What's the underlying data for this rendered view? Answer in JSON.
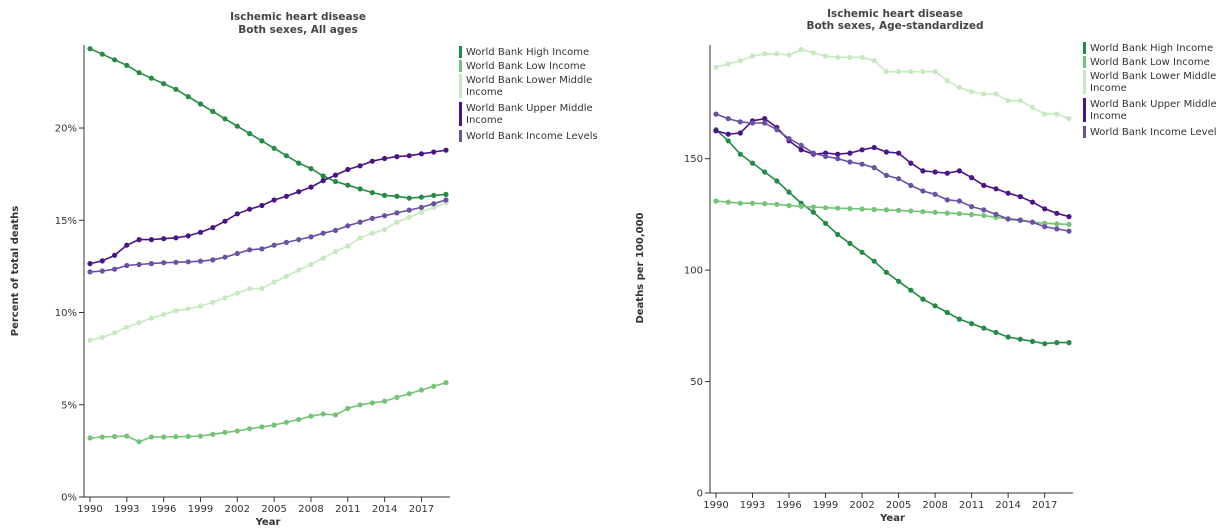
{
  "colors": {
    "high": "#238b45",
    "low": "#74c476",
    "lower_middle": "#c7e9c0",
    "upper_middle": "#4a1486",
    "income_levels": "#6a51a3",
    "axis": "#333333"
  },
  "legend": [
    {
      "key": "high",
      "lines": [
        "World Bank High Income"
      ]
    },
    {
      "key": "low",
      "lines": [
        "World Bank Low Income"
      ]
    },
    {
      "key": "lower_middle",
      "lines": [
        "World Bank Lower Middle",
        "Income"
      ]
    },
    {
      "key": "upper_middle",
      "lines": [
        "World Bank Upper Middle",
        "Income"
      ]
    },
    {
      "key": "income_levels",
      "lines": [
        "World Bank Income Levels"
      ]
    }
  ],
  "chart_data": [
    {
      "type": "line",
      "title": [
        "Ischemic heart disease",
        "Both sexes, All ages"
      ],
      "xlabel": "Year",
      "ylabel": "Percent of total deaths",
      "ylim": [
        0,
        24.5
      ],
      "y_ticks": [
        0,
        5,
        10,
        15,
        20
      ],
      "y_tick_labels": [
        "0%",
        "5%",
        "10%",
        "15%",
        "20%"
      ],
      "x_ticks": [
        1990,
        1993,
        1996,
        1999,
        2002,
        2005,
        2008,
        2011,
        2014,
        2017
      ],
      "x": [
        1990,
        1991,
        1992,
        1993,
        1994,
        1995,
        1996,
        1997,
        1998,
        1999,
        2000,
        2001,
        2002,
        2003,
        2004,
        2005,
        2006,
        2007,
        2008,
        2009,
        2010,
        2011,
        2012,
        2013,
        2014,
        2015,
        2016,
        2017,
        2018,
        2019
      ],
      "legend_position": "right",
      "series": [
        {
          "key": "high",
          "name": "World Bank High Income",
          "values": [
            24.3,
            24.0,
            23.7,
            23.4,
            23.0,
            22.7,
            22.4,
            22.1,
            21.7,
            21.3,
            20.9,
            20.5,
            20.1,
            19.7,
            19.3,
            18.9,
            18.5,
            18.1,
            17.8,
            17.4,
            17.1,
            16.9,
            16.7,
            16.5,
            16.35,
            16.3,
            16.2,
            16.25,
            16.35,
            16.4
          ]
        },
        {
          "key": "low",
          "name": "World Bank Low Income",
          "values": [
            3.2,
            3.25,
            3.28,
            3.3,
            3.0,
            3.25,
            3.25,
            3.27,
            3.28,
            3.3,
            3.4,
            3.5,
            3.58,
            3.7,
            3.8,
            3.9,
            4.05,
            4.2,
            4.38,
            4.5,
            4.45,
            4.8,
            5.0,
            5.1,
            5.2,
            5.4,
            5.6,
            5.8,
            6.0,
            6.2
          ]
        },
        {
          "key": "lower_middle",
          "name": "World Bank Lower Middle Income",
          "values": [
            8.5,
            8.65,
            8.9,
            9.2,
            9.45,
            9.7,
            9.9,
            10.1,
            10.2,
            10.35,
            10.55,
            10.8,
            11.05,
            11.3,
            11.3,
            11.65,
            11.95,
            12.3,
            12.6,
            12.95,
            13.3,
            13.6,
            14.05,
            14.3,
            14.5,
            14.9,
            15.15,
            15.45,
            15.7,
            15.95
          ]
        },
        {
          "key": "upper_middle",
          "name": "World Bank Upper Middle Income",
          "values": [
            12.65,
            12.8,
            13.1,
            13.65,
            13.95,
            13.95,
            14.0,
            14.05,
            14.15,
            14.35,
            14.6,
            14.95,
            15.35,
            15.6,
            15.8,
            16.1,
            16.3,
            16.55,
            16.8,
            17.15,
            17.45,
            17.75,
            17.95,
            18.2,
            18.35,
            18.45,
            18.5,
            18.6,
            18.7,
            18.8
          ]
        },
        {
          "key": "income_levels",
          "name": "World Bank Income Levels",
          "values": [
            12.2,
            12.25,
            12.35,
            12.55,
            12.6,
            12.65,
            12.7,
            12.72,
            12.75,
            12.78,
            12.85,
            13.0,
            13.2,
            13.4,
            13.45,
            13.65,
            13.8,
            13.95,
            14.1,
            14.3,
            14.45,
            14.7,
            14.9,
            15.1,
            15.25,
            15.4,
            15.55,
            15.7,
            15.9,
            16.1
          ]
        }
      ]
    },
    {
      "type": "line",
      "title": [
        "Ischemic heart disease",
        "Both sexes, Age-standardized"
      ],
      "xlabel": "Year",
      "ylabel": "Deaths per 100,000",
      "ylim": [
        0,
        201
      ],
      "y_ticks": [
        0,
        50,
        100,
        150
      ],
      "y_tick_labels": [
        "0",
        "50",
        "100",
        "150"
      ],
      "x_ticks": [
        1990,
        1993,
        1996,
        1999,
        2002,
        2005,
        2008,
        2011,
        2014,
        2017
      ],
      "x": [
        1990,
        1991,
        1992,
        1993,
        1994,
        1995,
        1996,
        1997,
        1998,
        1999,
        2000,
        2001,
        2002,
        2003,
        2004,
        2005,
        2006,
        2007,
        2008,
        2009,
        2010,
        2011,
        2012,
        2013,
        2014,
        2015,
        2016,
        2017,
        2018,
        2019
      ],
      "legend_position": "right",
      "series": [
        {
          "key": "high",
          "name": "World Bank High Income",
          "values": [
            163,
            158,
            152,
            148,
            144,
            140,
            135,
            130,
            126,
            121,
            116,
            112,
            108,
            104,
            99,
            95,
            91,
            87,
            84,
            81,
            78,
            76,
            74,
            72,
            70,
            69,
            68,
            67,
            67.5,
            67.5
          ]
        },
        {
          "key": "low",
          "name": "World Bank Low Income",
          "values": [
            131,
            130.5,
            130,
            130,
            129.8,
            129.5,
            129,
            128.6,
            128.3,
            128,
            127.8,
            127.6,
            127.4,
            127.2,
            127,
            126.8,
            126.5,
            126.2,
            125.9,
            125.6,
            125.3,
            124.9,
            124.5,
            123.7,
            122.9,
            122.2,
            121.5,
            121,
            120.8,
            120.5
          ]
        },
        {
          "key": "lower_middle",
          "name": "World Bank Lower Middle Income",
          "values": [
            191,
            192.5,
            194,
            196,
            197,
            197,
            196.5,
            199,
            197.5,
            196,
            195.5,
            195.5,
            195.5,
            194,
            189,
            189,
            189,
            189,
            189,
            185,
            182,
            180,
            179,
            179,
            176,
            176,
            173,
            170,
            170,
            168
          ]
        },
        {
          "key": "upper_middle",
          "name": "World Bank Upper Middle Income",
          "values": [
            162.5,
            161,
            161.5,
            167,
            168,
            164,
            158,
            154,
            152,
            152.5,
            152,
            152.5,
            154,
            155,
            153,
            152.5,
            148,
            144.5,
            144,
            143.5,
            144.5,
            141.5,
            138,
            136.5,
            134.5,
            133,
            130.5,
            127.5,
            125.5,
            124
          ]
        },
        {
          "key": "income_levels",
          "name": "World Bank Income Levels",
          "values": [
            170,
            168,
            166.5,
            166,
            166,
            163,
            159,
            156,
            152.5,
            151,
            150,
            148.5,
            147.5,
            146,
            142.5,
            141,
            138,
            135.5,
            134,
            131.5,
            131,
            128.5,
            127,
            125,
            123,
            122.5,
            121.5,
            119.5,
            118.5,
            117.5
          ]
        }
      ]
    }
  ]
}
